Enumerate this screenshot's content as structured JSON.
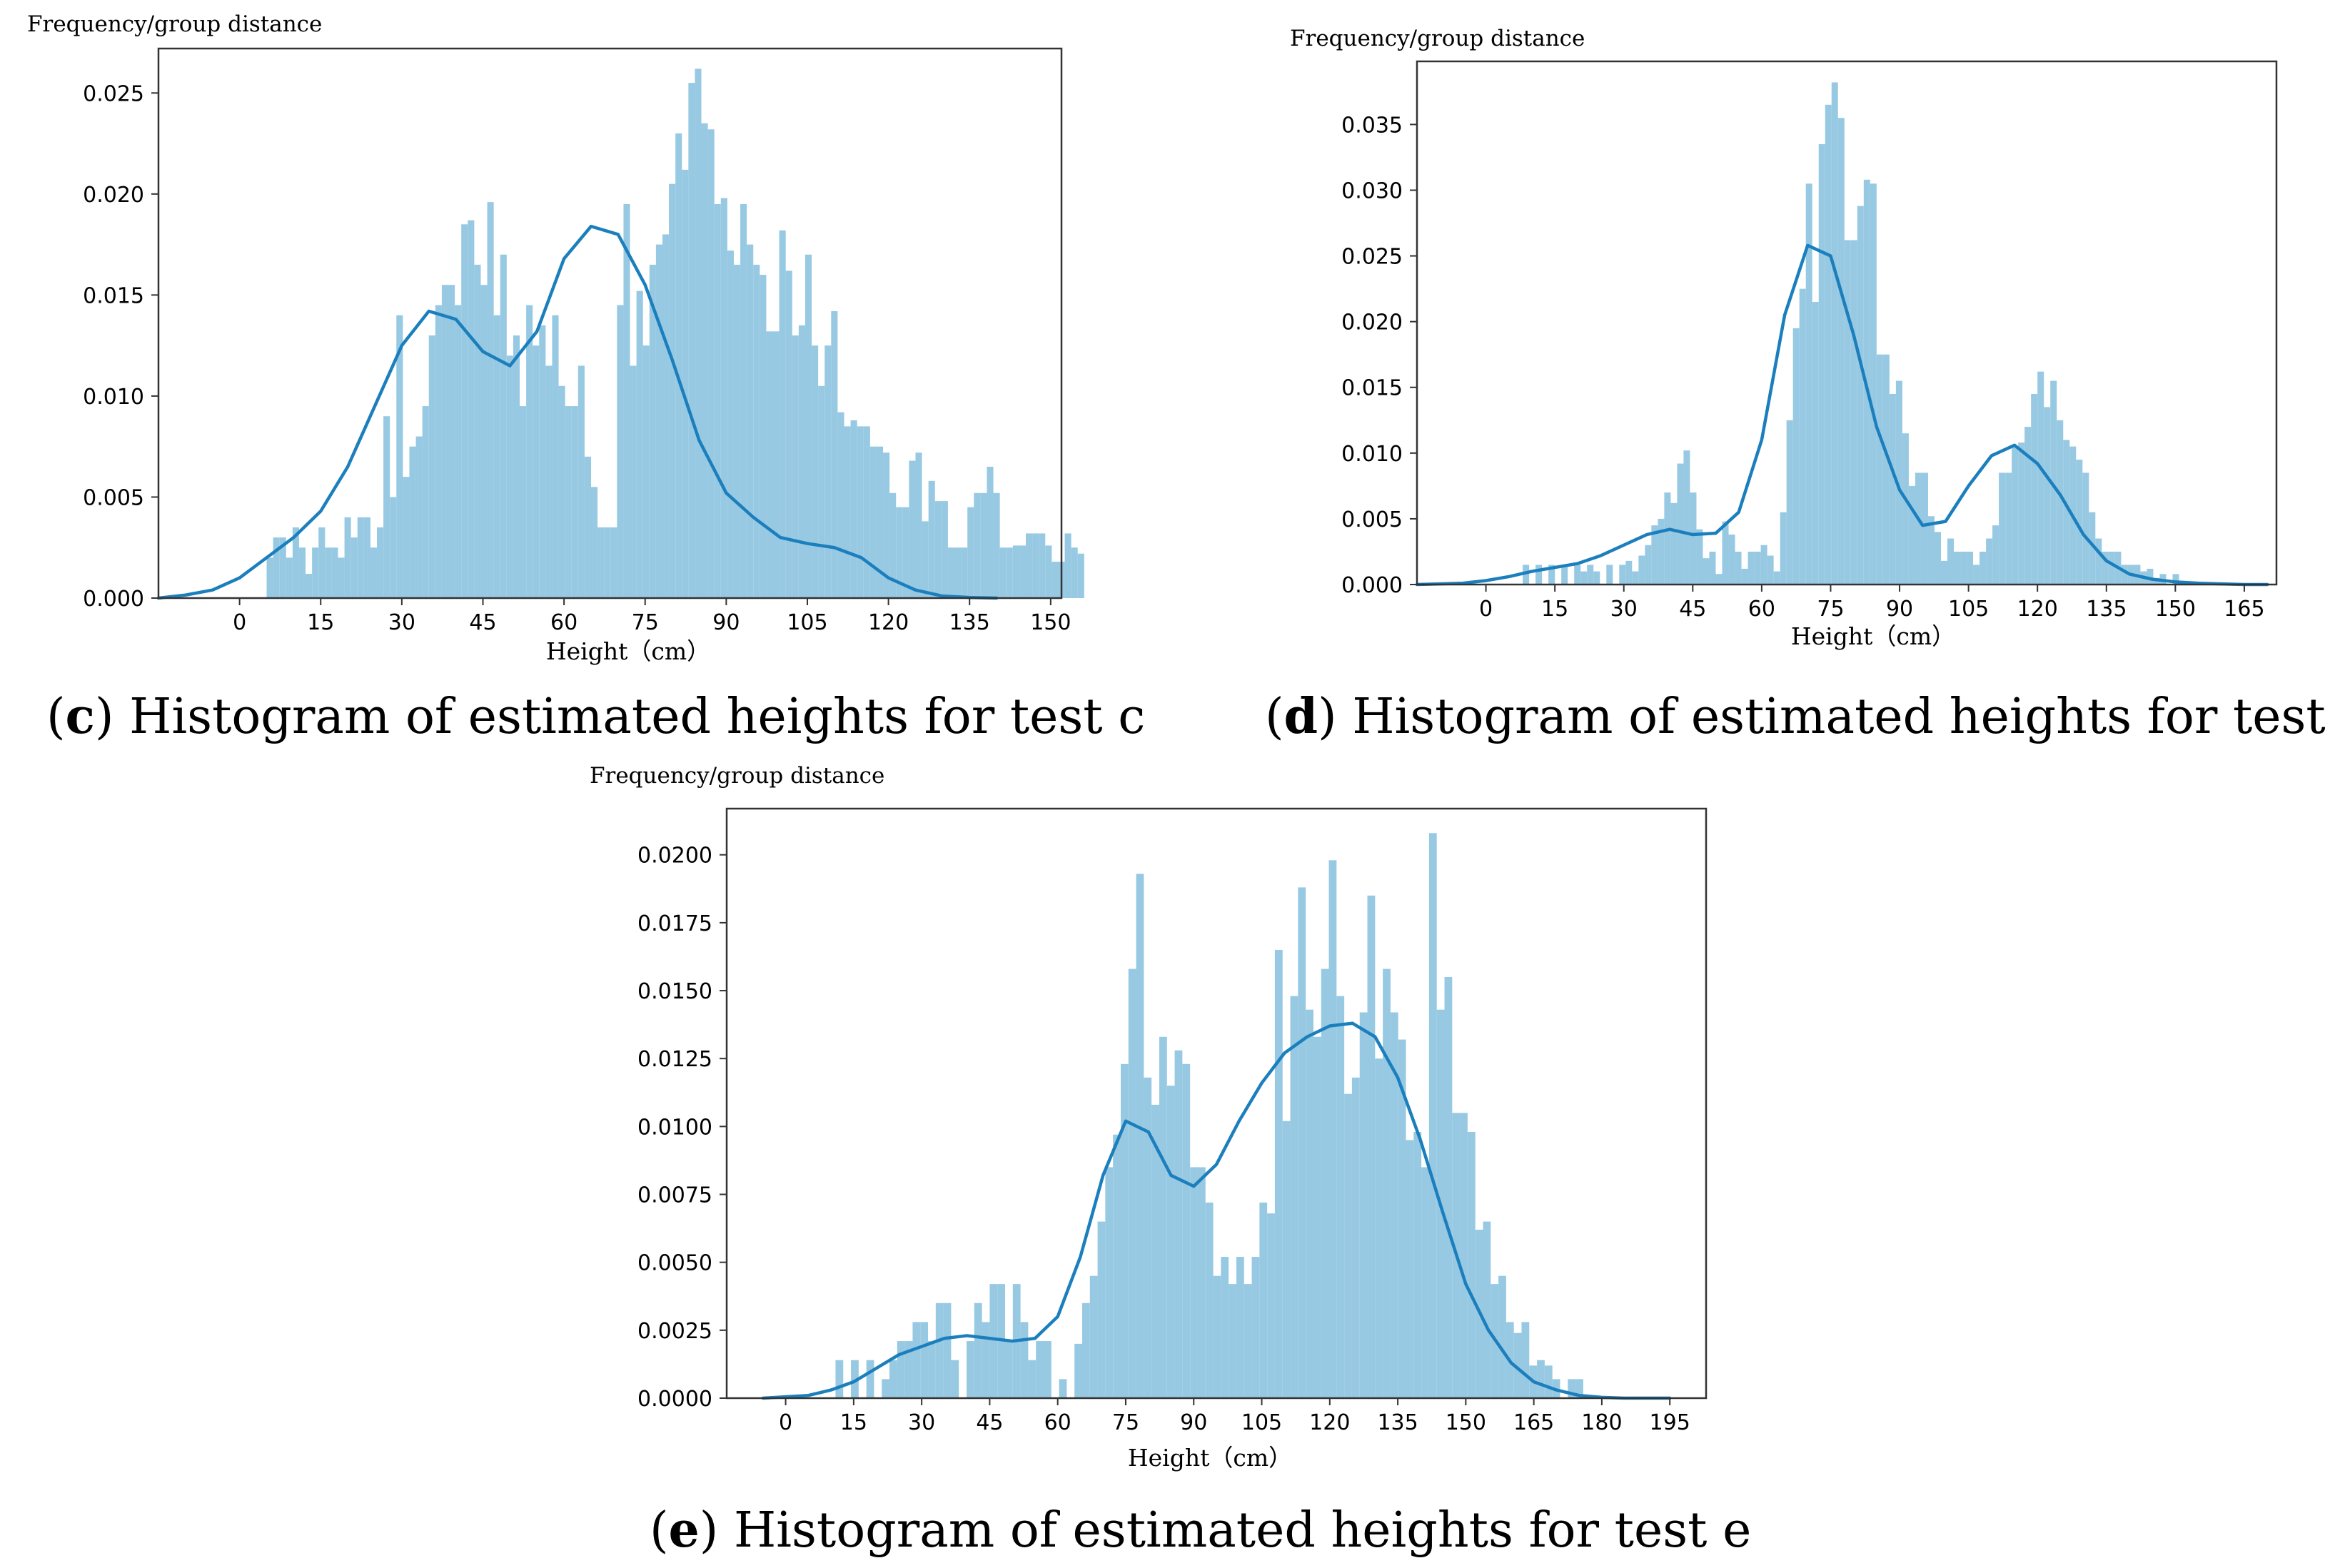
{
  "colors": {
    "bar": "#97c9e3",
    "kde": "#1c7fbd",
    "axis": "#333333",
    "text": "#000000"
  },
  "chart_data": [
    {
      "id": "c",
      "type": "bar",
      "title": "",
      "ylabel": "Frequency/group distance",
      "xlabel": "Height（cm）",
      "caption_letter": "c",
      "caption_text": "Histogram of estimated heights for test c",
      "xlim": [
        -15,
        152
      ],
      "ylim": [
        0,
        0.0272
      ],
      "xticks": [
        0,
        15,
        30,
        45,
        60,
        75,
        90,
        105,
        120,
        135,
        150
      ],
      "yticks": [
        0.0,
        0.005,
        0.01,
        0.015,
        0.02,
        0.025
      ],
      "ytick_labels": [
        "0.000",
        "0.005",
        "0.010",
        "0.015",
        "0.020",
        "0.025"
      ],
      "bins": {
        "start": 5,
        "width": 1.2,
        "values": [
          0.002,
          0.003,
          0.003,
          0.002,
          0.0035,
          0.0025,
          0.0012,
          0.0025,
          0.0035,
          0.0025,
          0.0025,
          0.002,
          0.004,
          0.003,
          0.004,
          0.004,
          0.0025,
          0.0035,
          0.009,
          0.005,
          0.014,
          0.006,
          0.0075,
          0.008,
          0.0095,
          0.013,
          0.0145,
          0.0155,
          0.0155,
          0.0145,
          0.0185,
          0.0187,
          0.0165,
          0.0155,
          0.0196,
          0.014,
          0.017,
          0.012,
          0.013,
          0.0095,
          0.0145,
          0.0125,
          0.0135,
          0.0115,
          0.014,
          0.0105,
          0.0095,
          0.0095,
          0.0115,
          0.007,
          0.0055,
          0.0035,
          0.0035,
          0.0035,
          0.0145,
          0.0195,
          0.0115,
          0.0152,
          0.0125,
          0.0165,
          0.0175,
          0.018,
          0.0205,
          0.023,
          0.0212,
          0.0255,
          0.0262,
          0.0235,
          0.0232,
          0.0195,
          0.0198,
          0.0172,
          0.0165,
          0.0195,
          0.0175,
          0.0165,
          0.016,
          0.0132,
          0.0132,
          0.0182,
          0.0162,
          0.013,
          0.0135,
          0.017,
          0.0125,
          0.0105,
          0.0125,
          0.0142,
          0.0092,
          0.0085,
          0.0088,
          0.0085,
          0.0085,
          0.0075,
          0.0075,
          0.0072,
          0.0052,
          0.0045,
          0.0045,
          0.0068,
          0.0072,
          0.0038,
          0.0058,
          0.0048,
          0.0048,
          0.0025,
          0.0025,
          0.0025,
          0.0045,
          0.0052,
          0.0052,
          0.0065,
          0.0052,
          0.0025,
          0.0025,
          0.0026,
          0.0026,
          0.0032,
          0.0032,
          0.0032,
          0.0026,
          0.0018,
          0.0018,
          0.0032,
          0.0025,
          0.0022
        ]
      },
      "kde": {
        "x": [
          -15,
          -10,
          -5,
          0,
          5,
          10,
          15,
          20,
          25,
          30,
          35,
          40,
          45,
          50,
          55,
          60,
          65,
          70,
          75,
          80,
          85,
          90,
          95,
          100,
          105,
          110,
          115,
          120,
          125,
          130,
          135,
          140
        ],
        "y": [
          0.0,
          0.00015,
          0.0004,
          0.001,
          0.002,
          0.003,
          0.0043,
          0.0065,
          0.0095,
          0.0125,
          0.0142,
          0.0138,
          0.0122,
          0.0115,
          0.0132,
          0.0168,
          0.0184,
          0.018,
          0.0155,
          0.0118,
          0.0078,
          0.0052,
          0.004,
          0.003,
          0.0027,
          0.0025,
          0.002,
          0.001,
          0.0004,
          0.0001,
          3e-05,
          0.0
        ]
      }
    },
    {
      "id": "d",
      "type": "bar",
      "title": "",
      "ylabel": "Frequency/group distance",
      "xlabel": "Height（cm）",
      "caption_letter": "d",
      "caption_text": "Histogram of estimated heights for test d",
      "xlim": [
        -15,
        172
      ],
      "ylim": [
        0,
        0.0398
      ],
      "xticks": [
        0,
        15,
        30,
        45,
        60,
        75,
        90,
        105,
        120,
        135,
        150,
        165
      ],
      "yticks": [
        0.0,
        0.005,
        0.01,
        0.015,
        0.02,
        0.025,
        0.03,
        0.035
      ],
      "ytick_labels": [
        "0.000",
        "0.005",
        "0.010",
        "0.015",
        "0.020",
        "0.025",
        "0.030",
        "0.035"
      ],
      "bins": {
        "start": 8,
        "width": 1.4,
        "values": [
          0.0015,
          0.0,
          0.0015,
          0.0,
          0.0015,
          0.0,
          0.0015,
          0.0,
          0.0015,
          0.001,
          0.0015,
          0.001,
          0.0,
          0.0015,
          0.0,
          0.0015,
          0.0018,
          0.001,
          0.0022,
          0.003,
          0.0045,
          0.005,
          0.007,
          0.0062,
          0.0092,
          0.0102,
          0.007,
          0.0042,
          0.002,
          0.0025,
          0.0008,
          0.0048,
          0.0038,
          0.0025,
          0.0012,
          0.0025,
          0.0025,
          0.003,
          0.0022,
          0.001,
          0.0055,
          0.0125,
          0.0195,
          0.0225,
          0.0305,
          0.0215,
          0.0335,
          0.0365,
          0.0382,
          0.0355,
          0.0262,
          0.0262,
          0.0288,
          0.0308,
          0.0305,
          0.0175,
          0.0175,
          0.0145,
          0.0155,
          0.0115,
          0.0075,
          0.0085,
          0.0085,
          0.0052,
          0.004,
          0.0018,
          0.0035,
          0.0025,
          0.0025,
          0.0025,
          0.0015,
          0.0025,
          0.0035,
          0.0045,
          0.0085,
          0.0085,
          0.0105,
          0.0108,
          0.012,
          0.0145,
          0.0162,
          0.0135,
          0.0155,
          0.0125,
          0.011,
          0.0105,
          0.0095,
          0.0085,
          0.0055,
          0.0035,
          0.0025,
          0.0025,
          0.0025,
          0.0015,
          0.0015,
          0.0015,
          0.001,
          0.0012,
          0.0005,
          0.0008,
          0.0,
          0.0008
        ]
      },
      "kde": {
        "x": [
          -15,
          -10,
          -5,
          0,
          5,
          10,
          15,
          20,
          25,
          30,
          35,
          40,
          45,
          50,
          55,
          60,
          65,
          70,
          75,
          80,
          85,
          90,
          95,
          100,
          105,
          110,
          115,
          120,
          125,
          130,
          135,
          140,
          145,
          150,
          155,
          160,
          165,
          170
        ],
        "y": [
          0.0,
          5e-05,
          0.0001,
          0.0003,
          0.0006,
          0.001,
          0.0013,
          0.0016,
          0.0022,
          0.003,
          0.0038,
          0.0042,
          0.0038,
          0.0039,
          0.0055,
          0.011,
          0.0205,
          0.0258,
          0.025,
          0.019,
          0.012,
          0.0072,
          0.0045,
          0.0048,
          0.0075,
          0.0098,
          0.0106,
          0.0092,
          0.0068,
          0.0038,
          0.0018,
          0.0008,
          0.0004,
          0.0002,
          0.0001,
          5e-05,
          0.0,
          0.0
        ]
      }
    },
    {
      "id": "e",
      "type": "bar",
      "title": "",
      "ylabel": "Frequency/group distance",
      "xlabel": "Height（cm）",
      "caption_letter": "e",
      "caption_text": "Histogram of estimated heights for test e",
      "xlim": [
        -13,
        203
      ],
      "ylim": [
        0,
        0.0217
      ],
      "xticks": [
        0,
        15,
        30,
        45,
        60,
        75,
        90,
        105,
        120,
        135,
        150,
        165,
        180,
        195
      ],
      "yticks": [
        0.0,
        0.0025,
        0.005,
        0.0075,
        0.01,
        0.0125,
        0.015,
        0.0175,
        0.02
      ],
      "ytick_labels": [
        "0.0000",
        "0.0025",
        "0.0050",
        "0.0075",
        "0.0100",
        "0.0125",
        "0.0150",
        "0.0175",
        "0.0200"
      ],
      "bins": {
        "start": 11,
        "width": 1.7,
        "values": [
          0.0014,
          0.0,
          0.0014,
          0.0,
          0.0014,
          0.0,
          0.0007,
          0.0014,
          0.0021,
          0.0021,
          0.0028,
          0.0028,
          0.0021,
          0.0035,
          0.0035,
          0.0014,
          0.0,
          0.0021,
          0.0035,
          0.0028,
          0.0042,
          0.0042,
          0.0021,
          0.0042,
          0.0028,
          0.0014,
          0.0021,
          0.0021,
          0.0,
          0.0007,
          0.0,
          0.002,
          0.0035,
          0.0045,
          0.0065,
          0.0085,
          0.0097,
          0.0123,
          0.0158,
          0.0193,
          0.0118,
          0.0108,
          0.0133,
          0.0115,
          0.0128,
          0.0123,
          0.0085,
          0.0085,
          0.0072,
          0.0045,
          0.0052,
          0.0042,
          0.0052,
          0.0042,
          0.0052,
          0.0072,
          0.0068,
          0.0165,
          0.0102,
          0.0148,
          0.0188,
          0.0143,
          0.0133,
          0.0158,
          0.0198,
          0.0148,
          0.0112,
          0.0118,
          0.0142,
          0.0185,
          0.0125,
          0.0158,
          0.0142,
          0.0132,
          0.0095,
          0.0098,
          0.0085,
          0.0208,
          0.0143,
          0.0155,
          0.0105,
          0.0105,
          0.0098,
          0.0062,
          0.0065,
          0.0042,
          0.0045,
          0.0028,
          0.0024,
          0.0028,
          0.0012,
          0.0014,
          0.0012,
          0.0007,
          0.0,
          0.0007,
          0.0007,
          0.0
        ]
      },
      "kde": {
        "x": [
          -5,
          0,
          5,
          10,
          15,
          20,
          25,
          30,
          35,
          40,
          45,
          50,
          55,
          60,
          65,
          70,
          75,
          80,
          85,
          90,
          95,
          100,
          105,
          110,
          115,
          120,
          125,
          130,
          135,
          140,
          145,
          150,
          155,
          160,
          165,
          170,
          175,
          180,
          185,
          190,
          195
        ],
        "y": [
          0.0,
          5e-05,
          0.0001,
          0.0003,
          0.0006,
          0.0011,
          0.0016,
          0.0019,
          0.0022,
          0.0023,
          0.0022,
          0.0021,
          0.0022,
          0.003,
          0.0052,
          0.0082,
          0.0102,
          0.0098,
          0.0082,
          0.0078,
          0.0086,
          0.0102,
          0.0116,
          0.0127,
          0.0133,
          0.0137,
          0.0138,
          0.0133,
          0.0118,
          0.0095,
          0.0068,
          0.0042,
          0.0025,
          0.0013,
          0.0006,
          0.0003,
          0.0001,
          3e-05,
          0.0,
          0.0,
          0.0
        ]
      }
    }
  ]
}
